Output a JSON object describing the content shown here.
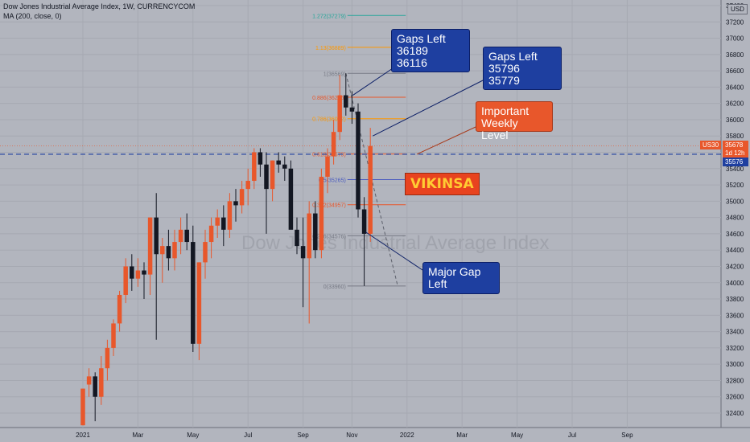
{
  "header": {
    "title": "Dow Jones Industrial Average Index, 1W, CURRENCYCOM",
    "indicator": "MA (200, close, 0)"
  },
  "watermark": "Dow Jones Industrial Average Index",
  "currency": "USD",
  "price_badges": {
    "symbol": "US30",
    "last": "35678",
    "timer": "1d 12h",
    "line": "35576"
  },
  "callouts": {
    "gaps1": {
      "line1": "Gaps Left",
      "line2": "36189",
      "line3": "36116"
    },
    "gaps2": {
      "line1": "Gaps Left",
      "line2": "35796",
      "line3": "35779"
    },
    "important": {
      "line1": "Important",
      "line2": "Weekly Level"
    },
    "major": {
      "line1": "Major Gap",
      "line2": "Left"
    }
  },
  "brand": "VIKINSA",
  "colors": {
    "up": "#e8572b",
    "down": "#131722",
    "background": "#b2b5be",
    "dashed_line": "#1e3fa0"
  },
  "chart_data": {
    "type": "candlestick",
    "title": "Dow Jones Industrial Average Index, 1W, CURRENCYCOM",
    "ylim": [
      32250,
      37480
    ],
    "yticks": [
      32400,
      32600,
      32800,
      33000,
      33200,
      33400,
      33600,
      33800,
      34000,
      34200,
      34400,
      34600,
      34800,
      35000,
      35200,
      35400,
      35600,
      35800,
      36000,
      36200,
      36400,
      36600,
      36800,
      37000,
      37200,
      37400
    ],
    "xlabels": [
      {
        "label": "2021",
        "index": 0
      },
      {
        "label": "Mar",
        "index": 9
      },
      {
        "label": "May",
        "index": 18
      },
      {
        "label": "Jul",
        "index": 27
      },
      {
        "label": "Sep",
        "index": 36
      },
      {
        "label": "Nov",
        "index": 44
      },
      {
        "label": "2022",
        "index": 53
      },
      {
        "label": "Mar",
        "index": 62
      },
      {
        "label": "May",
        "index": 71
      },
      {
        "label": "Jul",
        "index": 80
      },
      {
        "label": "Sep",
        "index": 89
      }
    ],
    "dashed_level": 35576,
    "fib_levels": [
      {
        "label": "1.272(37279)",
        "value": 37279,
        "color": "#26a69a"
      },
      {
        "label": "1.13(36889)",
        "value": 36889,
        "color": "#ff9800"
      },
      {
        "label": "1(36569)",
        "value": 36569,
        "color": "#787b86"
      },
      {
        "label": "0.886(36276)",
        "value": 36276,
        "color": "#e8572b"
      },
      {
        "label": "0.786(36012)",
        "value": 36012,
        "color": "#ff9800"
      },
      {
        "label": "0.618(35579)",
        "value": 35579,
        "color": "#e8572b"
      },
      {
        "label": "0.5(35265)",
        "value": 35265,
        "color": "#4a5bbf"
      },
      {
        "label": "0.382(34957)",
        "value": 34957,
        "color": "#e8572b"
      },
      {
        "label": "0.236(34576)",
        "value": 34576,
        "color": "#787b86"
      },
      {
        "label": "0(33960)",
        "value": 33960,
        "color": "#787b86"
      }
    ],
    "candles": [
      {
        "o": 32250,
        "h": 32700,
        "l": 32250,
        "c": 32700
      },
      {
        "o": 32750,
        "h": 32950,
        "l": 32600,
        "c": 32850
      },
      {
        "o": 32850,
        "h": 32900,
        "l": 32300,
        "c": 32600
      },
      {
        "o": 32600,
        "h": 33100,
        "l": 32500,
        "c": 32950
      },
      {
        "o": 32950,
        "h": 33300,
        "l": 32800,
        "c": 33200
      },
      {
        "o": 33200,
        "h": 33550,
        "l": 33100,
        "c": 33500
      },
      {
        "o": 33500,
        "h": 33900,
        "l": 33400,
        "c": 33850
      },
      {
        "o": 33850,
        "h": 34300,
        "l": 33750,
        "c": 34200
      },
      {
        "o": 34200,
        "h": 34350,
        "l": 33900,
        "c": 34050
      },
      {
        "o": 34050,
        "h": 34300,
        "l": 33950,
        "c": 34150
      },
      {
        "o": 34150,
        "h": 34250,
        "l": 33800,
        "c": 34100
      },
      {
        "o": 34100,
        "h": 34800,
        "l": 33850,
        "c": 34800
      },
      {
        "o": 34800,
        "h": 35100,
        "l": 33300,
        "c": 34350
      },
      {
        "o": 34350,
        "h": 34550,
        "l": 34000,
        "c": 34450
      },
      {
        "o": 34450,
        "h": 34650,
        "l": 34150,
        "c": 34300
      },
      {
        "o": 34300,
        "h": 34650,
        "l": 34150,
        "c": 34500
      },
      {
        "o": 34500,
        "h": 34800,
        "l": 34350,
        "c": 34650
      },
      {
        "o": 34650,
        "h": 34850,
        "l": 34400,
        "c": 34500
      },
      {
        "o": 34500,
        "h": 34700,
        "l": 33150,
        "c": 33250
      },
      {
        "o": 33250,
        "h": 34250,
        "l": 33050,
        "c": 34250
      },
      {
        "o": 34250,
        "h": 34650,
        "l": 34050,
        "c": 34500
      },
      {
        "o": 34500,
        "h": 34800,
        "l": 34300,
        "c": 34700
      },
      {
        "o": 34700,
        "h": 34900,
        "l": 34550,
        "c": 34800
      },
      {
        "o": 34800,
        "h": 34950,
        "l": 34450,
        "c": 34650
      },
      {
        "o": 34650,
        "h": 35100,
        "l": 34550,
        "c": 35000
      },
      {
        "o": 35000,
        "h": 35150,
        "l": 34750,
        "c": 34950
      },
      {
        "o": 34950,
        "h": 35250,
        "l": 34850,
        "c": 35150
      },
      {
        "o": 35150,
        "h": 35400,
        "l": 34950,
        "c": 35250
      },
      {
        "o": 35250,
        "h": 35650,
        "l": 35150,
        "c": 35600
      },
      {
        "o": 35600,
        "h": 35650,
        "l": 35300,
        "c": 35450
      },
      {
        "o": 35450,
        "h": 35600,
        "l": 34600,
        "c": 35150
      },
      {
        "o": 35150,
        "h": 35500,
        "l": 35000,
        "c": 35500
      },
      {
        "o": 35500,
        "h": 35600,
        "l": 35350,
        "c": 35450
      },
      {
        "o": 35450,
        "h": 35550,
        "l": 35250,
        "c": 35400
      },
      {
        "o": 35400,
        "h": 35500,
        "l": 34700,
        "c": 34650
      },
      {
        "o": 34650,
        "h": 34800,
        "l": 34350,
        "c": 34450
      },
      {
        "o": 34450,
        "h": 34800,
        "l": 33700,
        "c": 34300
      },
      {
        "o": 34300,
        "h": 35000,
        "l": 33500,
        "c": 34850
      },
      {
        "o": 34850,
        "h": 35000,
        "l": 34300,
        "c": 34400
      },
      {
        "o": 34400,
        "h": 35400,
        "l": 34300,
        "c": 35300
      },
      {
        "o": 35300,
        "h": 35650,
        "l": 35100,
        "c": 35550
      },
      {
        "o": 35550,
        "h": 36000,
        "l": 35450,
        "c": 35850
      },
      {
        "o": 35850,
        "h": 36550,
        "l": 35750,
        "c": 36300
      },
      {
        "o": 36300,
        "h": 36569,
        "l": 36050,
        "c": 36150
      },
      {
        "o": 36150,
        "h": 36350,
        "l": 35950,
        "c": 36100
      },
      {
        "o": 36100,
        "h": 36200,
        "l": 34800,
        "c": 34900
      },
      {
        "o": 34900,
        "h": 35050,
        "l": 33960,
        "c": 34600
      },
      {
        "o": 34600,
        "h": 35900,
        "l": 34500,
        "c": 35678
      }
    ]
  }
}
